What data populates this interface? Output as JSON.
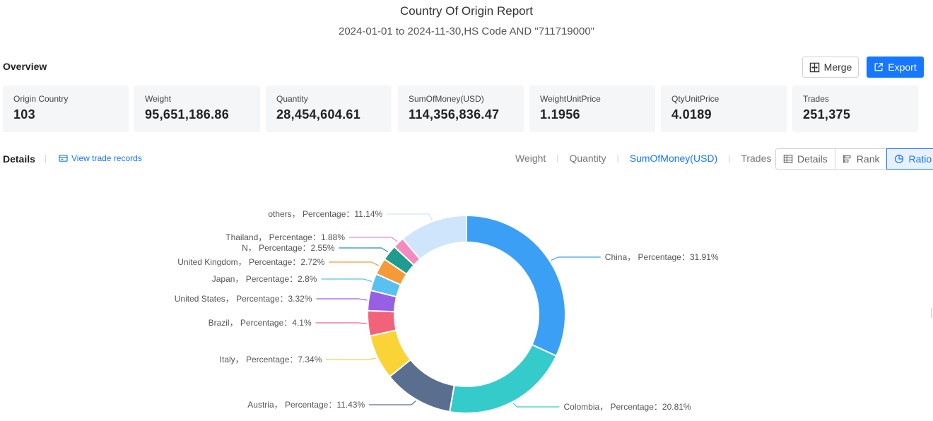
{
  "header": {
    "title": "Country Of Origin Report",
    "subtitle": "2024-01-01 to 2024-11-30,HS Code AND \"711719000\""
  },
  "overview": {
    "label": "Overview",
    "merge_label": "Merge",
    "export_label": "Export",
    "cards": [
      {
        "label": "Origin Country",
        "value": "103"
      },
      {
        "label": "Weight",
        "value": "95,651,186.86"
      },
      {
        "label": "Quantity",
        "value": "28,454,604.61"
      },
      {
        "label": "SumOfMoney(USD)",
        "value": "114,356,836.47"
      },
      {
        "label": "WeightUnitPrice",
        "value": "1.1956"
      },
      {
        "label": "QtyUnitPrice",
        "value": "4.0189"
      },
      {
        "label": "Trades",
        "value": "251,375"
      }
    ]
  },
  "details": {
    "label": "Details",
    "view_link": "View trade records",
    "metric_tabs": [
      "Weight",
      "Quantity",
      "SumOfMoney(USD)",
      "Trades"
    ],
    "active_metric": "SumOfMoney(USD)",
    "view_buttons": [
      "Details",
      "Rank",
      "Ratio"
    ],
    "active_view": "Ratio"
  },
  "colors": {
    "accent": "#1677ff",
    "card_bg": "#f5f6f8"
  },
  "chart_data": {
    "type": "pie",
    "subtype": "donut",
    "label_format": "{name}， Percentage：{value}%",
    "slices": [
      {
        "name": "China",
        "value": 31.91,
        "color": "#3ba0f5"
      },
      {
        "name": "Colombia",
        "value": 20.81,
        "color": "#36cbcb"
      },
      {
        "name": "Austria",
        "value": 11.43,
        "color": "#5a6e8f"
      },
      {
        "name": "Italy",
        "value": 7.34,
        "color": "#fad337"
      },
      {
        "name": "Brazil",
        "value": 4.1,
        "color": "#f2637b"
      },
      {
        "name": "United States",
        "value": 3.32,
        "color": "#975fe4"
      },
      {
        "name": "Japan",
        "value": 2.8,
        "color": "#58c1f0"
      },
      {
        "name": "United Kingdom",
        "value": 2.72,
        "color": "#f59a38"
      },
      {
        "name": "N",
        "value": 2.55,
        "color": "#1f9b8f"
      },
      {
        "name": "Thailand",
        "value": 1.88,
        "color": "#f58ac0"
      },
      {
        "name": "others",
        "value": 11.14,
        "color": "#cfe5fb"
      }
    ]
  }
}
